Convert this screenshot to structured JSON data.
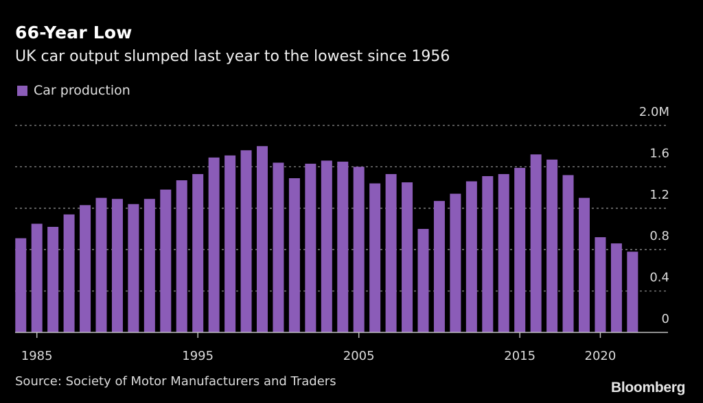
{
  "header": {
    "title": "66-Year Low",
    "subtitle": "UK car output slumped last year to the lowest since 1956"
  },
  "footer": {
    "source": "Source: Society of Motor Manufacturers and Traders",
    "logo": "Bloomberg"
  },
  "chart_data": {
    "type": "bar",
    "title": "66-Year Low",
    "subtitle": "UK car output slumped last year to the lowest since 1956",
    "xlabel": "",
    "ylabel": "",
    "legend": {
      "position": "top-left",
      "entries": [
        "Car production"
      ]
    },
    "grid": true,
    "ylim": [
      0,
      2.0
    ],
    "y_unit": "M",
    "y_ticks": [
      {
        "value": 0,
        "label": "0"
      },
      {
        "value": 0.4,
        "label": "0.4"
      },
      {
        "value": 0.8,
        "label": "0.8"
      },
      {
        "value": 1.2,
        "label": "1.2"
      },
      {
        "value": 1.6,
        "label": "1.6"
      },
      {
        "value": 2.0,
        "label": "2.0M"
      }
    ],
    "x_ticks": [
      {
        "value": 1985,
        "label": "1985"
      },
      {
        "value": 1995,
        "label": "1995"
      },
      {
        "value": 2005,
        "label": "2005"
      },
      {
        "value": 2015,
        "label": "2015"
      },
      {
        "value": 2020,
        "label": "2020"
      }
    ],
    "categories": [
      1984,
      1985,
      1986,
      1987,
      1988,
      1989,
      1990,
      1991,
      1992,
      1993,
      1994,
      1995,
      1996,
      1997,
      1998,
      1999,
      2000,
      2001,
      2002,
      2003,
      2004,
      2005,
      2006,
      2007,
      2008,
      2009,
      2010,
      2011,
      2012,
      2013,
      2014,
      2015,
      2016,
      2017,
      2018,
      2019,
      2020,
      2021,
      2022
    ],
    "series": [
      {
        "name": "Car production",
        "color": "#8b5cb8",
        "values": [
          0.91,
          1.05,
          1.02,
          1.14,
          1.23,
          1.3,
          1.29,
          1.24,
          1.29,
          1.38,
          1.47,
          1.53,
          1.69,
          1.71,
          1.76,
          1.8,
          1.64,
          1.49,
          1.63,
          1.66,
          1.65,
          1.6,
          1.44,
          1.53,
          1.45,
          1.0,
          1.27,
          1.34,
          1.46,
          1.51,
          1.53,
          1.59,
          1.72,
          1.67,
          1.52,
          1.3,
          0.92,
          0.86,
          0.78
        ]
      }
    ]
  },
  "colors": {
    "background": "#000000",
    "bar": "#8b5cb8",
    "grid": "#8a8a8a",
    "axis": "#bfbfbf",
    "text": "#dcdcdc"
  }
}
